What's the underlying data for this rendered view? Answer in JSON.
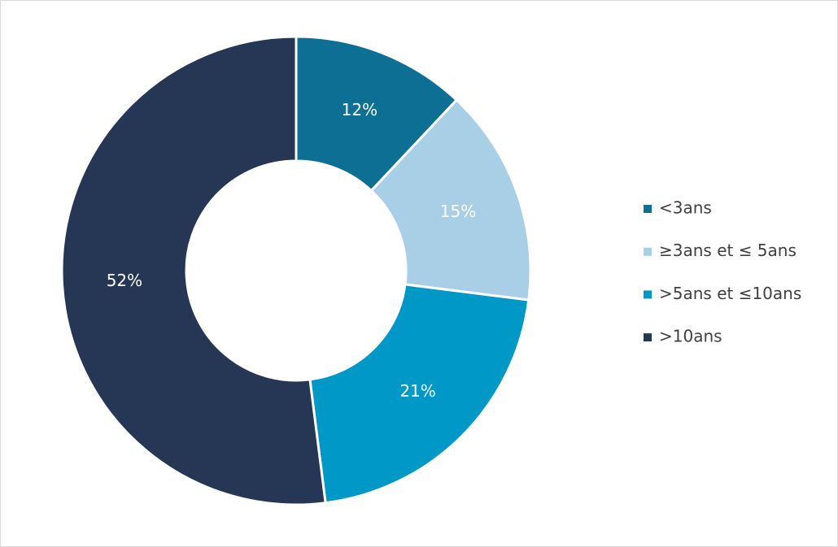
{
  "chart_data": {
    "type": "donut",
    "categories": [
      "<3ans",
      "≥3ans et ≤ 5ans",
      ">5ans et ≤10ans",
      ">10ans"
    ],
    "values": [
      12,
      15,
      21,
      52
    ],
    "value_labels": [
      "12%",
      "15%",
      "21%",
      "52%"
    ],
    "colors": [
      "#0e6f95",
      "#a9cfe6",
      "#0098c6",
      "#263655"
    ],
    "legend": "right"
  }
}
